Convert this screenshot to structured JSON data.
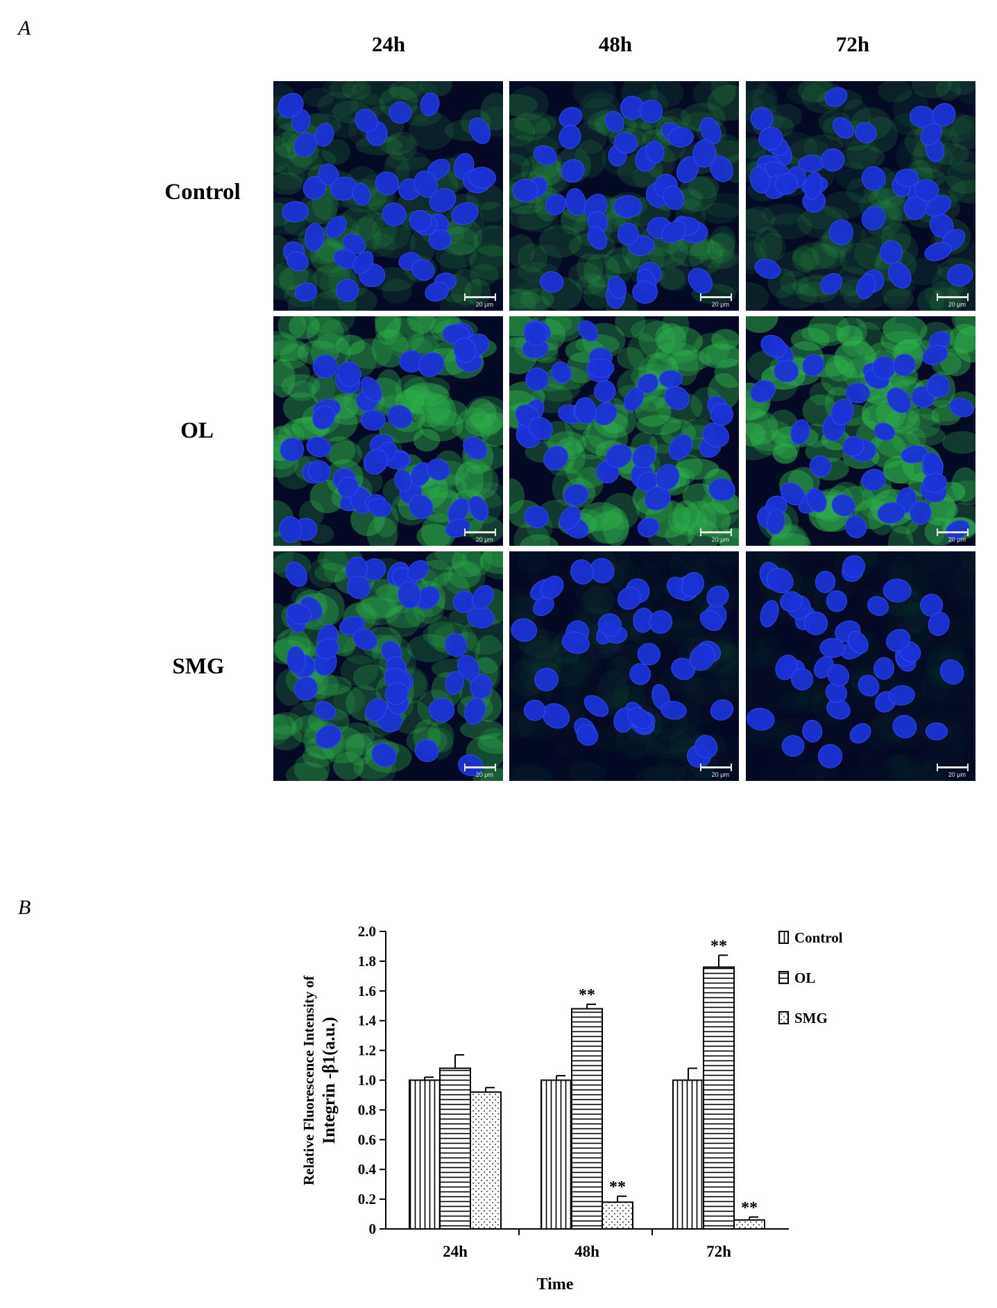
{
  "panel_a": {
    "letter": "A",
    "columns": [
      "24h",
      "48h",
      "72h"
    ],
    "rows": [
      "Control",
      "OL",
      "SMG"
    ],
    "scale_label": "20 μm",
    "images": [
      {
        "green": 0.35
      },
      {
        "green": 0.35
      },
      {
        "green": 0.3
      },
      {
        "green": 0.8
      },
      {
        "green": 0.85
      },
      {
        "green": 0.95
      },
      {
        "green": 0.65
      },
      {
        "green": 0.08
      },
      {
        "green": 0.05
      }
    ],
    "colors": {
      "nucleus": "#1a33d6",
      "cytoplasm": "#2fb24a",
      "background": "#050a24"
    }
  },
  "panel_b": {
    "letter": "B",
    "chart_data": {
      "type": "bar",
      "categories": [
        "24h",
        "48h",
        "72h"
      ],
      "series": [
        {
          "name": "Control",
          "values": [
            1.0,
            1.0,
            1.0
          ],
          "errors": [
            0.02,
            0.03,
            0.08
          ],
          "pattern": "vertical",
          "sig": [
            "",
            "",
            ""
          ]
        },
        {
          "name": "OL",
          "values": [
            1.08,
            1.48,
            1.76
          ],
          "errors": [
            0.09,
            0.03,
            0.08
          ],
          "pattern": "horizontal",
          "sig": [
            "",
            "**",
            "**"
          ]
        },
        {
          "name": "SMG",
          "values": [
            0.92,
            0.18,
            0.06
          ],
          "errors": [
            0.03,
            0.04,
            0.02
          ],
          "pattern": "dots",
          "sig": [
            "",
            "**",
            "**"
          ]
        }
      ],
      "ylabel_line1": "Relative Fluorescence Intensity of",
      "ylabel_line2": "Integrin -β1(a.u.)",
      "xlabel": "Time",
      "ylim": [
        0,
        2.0
      ],
      "yticks": [
        "0",
        "0.2",
        "0.4",
        "0.6",
        "0.8",
        "1.0",
        "1.2",
        "1.4",
        "1.6",
        "1.8",
        "2.0"
      ],
      "legend_position": "top-right"
    }
  }
}
